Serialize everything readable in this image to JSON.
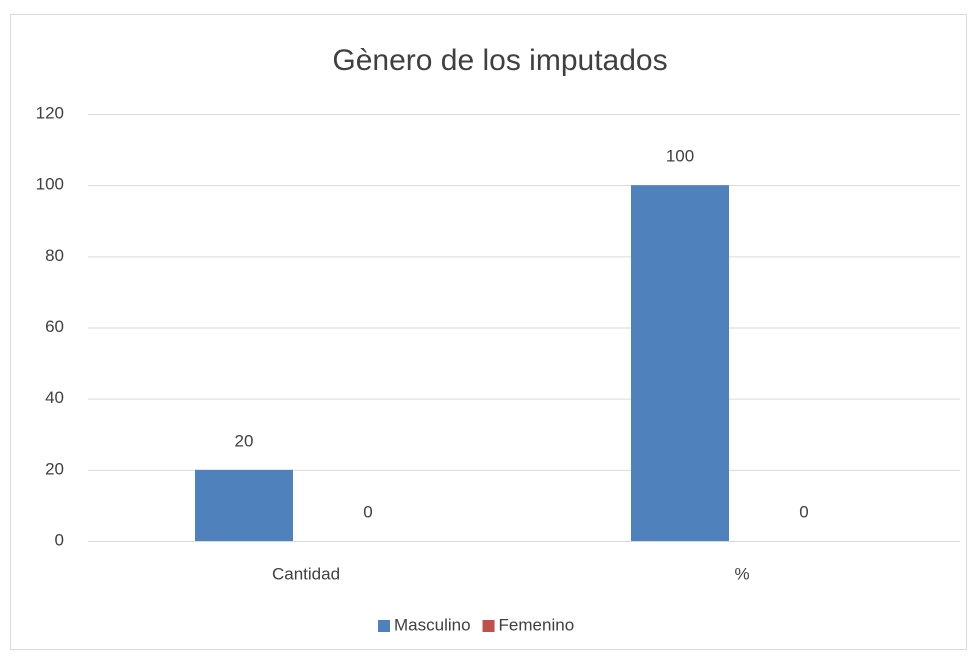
{
  "chart_data": {
    "type": "bar",
    "title": "Gènero de los imputados",
    "categories": [
      "Cantidad",
      "%"
    ],
    "series": [
      {
        "name": "Masculino",
        "color": "#4f81bd",
        "values": [
          20,
          100
        ]
      },
      {
        "name": "Femenino",
        "color": "#c0504d",
        "values": [
          0,
          0
        ]
      }
    ],
    "ylim": [
      0,
      120
    ],
    "yticks": [
      0,
      20,
      40,
      60,
      80,
      100,
      120
    ],
    "grid": true,
    "legend": "bottom",
    "data_labels": true
  }
}
